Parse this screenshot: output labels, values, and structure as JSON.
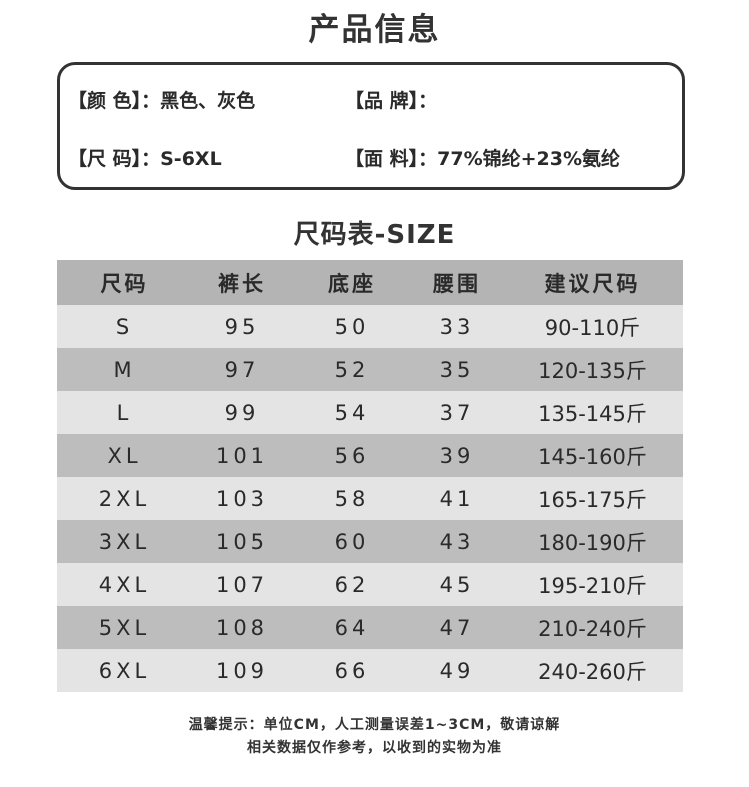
{
  "title": "产品信息",
  "info": {
    "color_label": "【颜 色】：",
    "color_value": "黑色、灰色",
    "brand_label": "【品 牌】：",
    "brand_value": "",
    "size_label": "【尺 码】：",
    "size_value": "S-6XL",
    "fabric_label": "【面 料】：",
    "fabric_value": "77%锦纶+23%氨纶"
  },
  "size_title": "尺码表-SIZE",
  "table": {
    "headers": [
      "尺码",
      "裤长",
      "底座",
      "腰围",
      "建议尺码"
    ],
    "rows": [
      [
        "S",
        "95",
        "50",
        "33",
        "90-110斤"
      ],
      [
        "M",
        "97",
        "52",
        "35",
        "120-135斤"
      ],
      [
        "L",
        "99",
        "54",
        "37",
        "135-145斤"
      ],
      [
        "XL",
        "101",
        "56",
        "39",
        "145-160斤"
      ],
      [
        "2XL",
        "103",
        "58",
        "41",
        "165-175斤"
      ],
      [
        "3XL",
        "105",
        "60",
        "43",
        "180-190斤"
      ],
      [
        "4XL",
        "107",
        "62",
        "45",
        "195-210斤"
      ],
      [
        "5XL",
        "108",
        "64",
        "47",
        "210-240斤"
      ],
      [
        "6XL",
        "109",
        "66",
        "49",
        "240-260斤"
      ]
    ]
  },
  "note": {
    "line1": "温馨提示：单位CM，人工测量误差1~3CM，敬请谅解",
    "line2": "相关数据仅作参考，以收到的实物为准"
  }
}
